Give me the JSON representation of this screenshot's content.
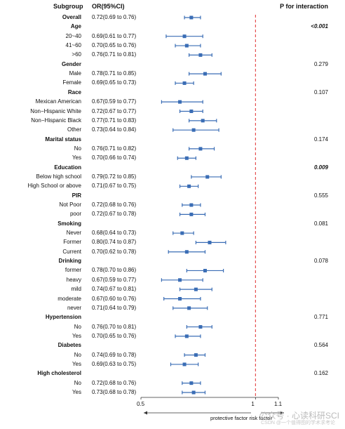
{
  "header": {
    "subgroup": "Subgroup",
    "or": "OR(95%CI)",
    "p": "P for interaction"
  },
  "chart_data": {
    "type": "forest",
    "xlim": [
      0.5,
      1.1
    ],
    "ticks": [
      0.5,
      1,
      1.1
    ],
    "tick_labels": [
      "0.5",
      "1",
      "1.1"
    ],
    "reference_line": 1,
    "marker_color": "#3a6db5",
    "reference_color": "#e03030",
    "x_annotation": "protective factor  risk factor",
    "rows": [
      {
        "label": "Overall",
        "bold": true,
        "or": 0.72,
        "lo": 0.69,
        "hi": 0.76,
        "text": "0.72(0.69 to 0.76)",
        "p": ""
      },
      {
        "label": "Age",
        "bold": true,
        "p": "<0.001",
        "p_em": true
      },
      {
        "label": "20~40",
        "or": 0.69,
        "lo": 0.61,
        "hi": 0.77,
        "text": "0.69(0.61 to 0.77)",
        "p": ""
      },
      {
        "label": "41~60",
        "or": 0.7,
        "lo": 0.65,
        "hi": 0.76,
        "text": "0.70(0.65 to 0.76)",
        "p": ""
      },
      {
        "label": ">60",
        "or": 0.76,
        "lo": 0.71,
        "hi": 0.81,
        "text": "0.76(0.71 to 0.81)",
        "p": ""
      },
      {
        "label": "Gender",
        "bold": true,
        "p": "0.279"
      },
      {
        "label": "Male",
        "or": 0.78,
        "lo": 0.71,
        "hi": 0.85,
        "text": "0.78(0.71 to 0.85)",
        "p": ""
      },
      {
        "label": "Female",
        "or": 0.69,
        "lo": 0.65,
        "hi": 0.73,
        "text": "0.69(0.65 to 0.73)",
        "p": ""
      },
      {
        "label": "Race",
        "bold": true,
        "p": "0.107"
      },
      {
        "label": "Mexican American",
        "or": 0.67,
        "lo": 0.59,
        "hi": 0.77,
        "text": "0.67(0.59 to 0.77)",
        "p": ""
      },
      {
        "label": "Non−Hispanic White",
        "or": 0.72,
        "lo": 0.67,
        "hi": 0.77,
        "text": "0.72(0.67 to 0.77)",
        "p": ""
      },
      {
        "label": "Non−Hispanic Black",
        "or": 0.77,
        "lo": 0.71,
        "hi": 0.83,
        "text": "0.77(0.71 to 0.83)",
        "p": ""
      },
      {
        "label": "Other",
        "or": 0.73,
        "lo": 0.64,
        "hi": 0.84,
        "text": "0.73(0.64 to 0.84)",
        "p": ""
      },
      {
        "label": "Marital status",
        "bold": true,
        "p": "0.174"
      },
      {
        "label": "No",
        "or": 0.76,
        "lo": 0.71,
        "hi": 0.82,
        "text": "0.76(0.71 to 0.82)",
        "p": ""
      },
      {
        "label": "Yes",
        "or": 0.7,
        "lo": 0.66,
        "hi": 0.74,
        "text": "0.70(0.66 to 0.74)",
        "p": ""
      },
      {
        "label": "Education",
        "bold": true,
        "p": "0.009",
        "p_em": true
      },
      {
        "label": "Below high school",
        "or": 0.79,
        "lo": 0.72,
        "hi": 0.85,
        "text": "0.79(0.72 to 0.85)",
        "p": ""
      },
      {
        "label": "High School or above",
        "or": 0.71,
        "lo": 0.67,
        "hi": 0.75,
        "text": "0.71(0.67 to 0.75)",
        "p": ""
      },
      {
        "label": "PIR",
        "bold": true,
        "p": "0.555"
      },
      {
        "label": "Not Poor",
        "or": 0.72,
        "lo": 0.68,
        "hi": 0.76,
        "text": "0.72(0.68 to 0.76)",
        "p": ""
      },
      {
        "label": "poor",
        "or": 0.72,
        "lo": 0.67,
        "hi": 0.78,
        "text": "0.72(0.67 to 0.78)",
        "p": ""
      },
      {
        "label": "Smoking",
        "bold": true,
        "p": "0.081"
      },
      {
        "label": "Never",
        "or": 0.68,
        "lo": 0.64,
        "hi": 0.73,
        "text": "0.68(0.64 to 0.73)",
        "p": ""
      },
      {
        "label": "Former",
        "or": 0.8,
        "lo": 0.74,
        "hi": 0.87,
        "text": "0.80(0.74 to 0.87)",
        "p": ""
      },
      {
        "label": "Current",
        "or": 0.7,
        "lo": 0.62,
        "hi": 0.78,
        "text": "0.70(0.62 to 0.78)",
        "p": ""
      },
      {
        "label": "Drinking",
        "bold": true,
        "p": "0.078"
      },
      {
        "label": "former",
        "or": 0.78,
        "lo": 0.7,
        "hi": 0.86,
        "text": "0.78(0.70 to 0.86)",
        "p": ""
      },
      {
        "label": "heavy",
        "or": 0.67,
        "lo": 0.59,
        "hi": 0.77,
        "text": "0.67(0.59 to 0.77)",
        "p": ""
      },
      {
        "label": "mild",
        "or": 0.74,
        "lo": 0.67,
        "hi": 0.81,
        "text": "0.74(0.67 to 0.81)",
        "p": ""
      },
      {
        "label": "moderate",
        "or": 0.67,
        "lo": 0.6,
        "hi": 0.76,
        "text": "0.67(0.60 to 0.76)",
        "p": ""
      },
      {
        "label": "never",
        "or": 0.71,
        "lo": 0.64,
        "hi": 0.79,
        "text": "0.71(0.64 to 0.79)",
        "p": ""
      },
      {
        "label": "Hypertension",
        "bold": true,
        "p": "0.771"
      },
      {
        "label": "No",
        "or": 0.76,
        "lo": 0.7,
        "hi": 0.81,
        "text": "0.76(0.70 to 0.81)",
        "p": ""
      },
      {
        "label": "Yes",
        "or": 0.7,
        "lo": 0.65,
        "hi": 0.76,
        "text": "0.70(0.65 to 0.76)",
        "p": ""
      },
      {
        "label": "Diabetes",
        "bold": true,
        "p": "0.564"
      },
      {
        "label": "No",
        "or": 0.74,
        "lo": 0.69,
        "hi": 0.78,
        "text": "0.74(0.69 to 0.78)",
        "p": ""
      },
      {
        "label": "Yes",
        "or": 0.69,
        "lo": 0.63,
        "hi": 0.75,
        "text": "0.69(0.63 to 0.75)",
        "p": ""
      },
      {
        "label": "High cholesterol",
        "bold": true,
        "p": "0.162"
      },
      {
        "label": "No",
        "or": 0.72,
        "lo": 0.68,
        "hi": 0.76,
        "text": "0.72(0.68 to 0.76)",
        "p": ""
      },
      {
        "label": "Yes",
        "or": 0.73,
        "lo": 0.68,
        "hi": 0.78,
        "text": "0.73(0.68 to 0.78)",
        "p": ""
      }
    ]
  },
  "watermark": {
    "line1": "公众号 · 心读科研SCI",
    "line2": "CSDN @一个值得图的学术求考论"
  }
}
